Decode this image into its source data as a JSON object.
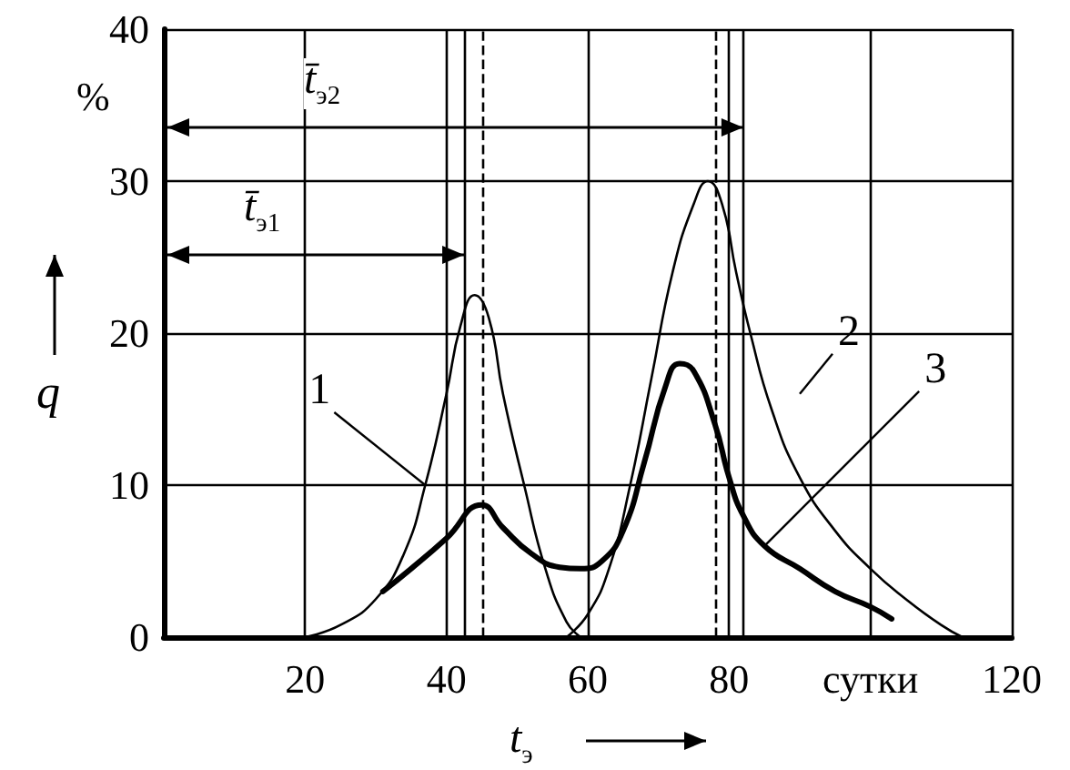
{
  "chart_data": {
    "type": "line",
    "xlabel": "t$_{э}$",
    "ylabel": "q",
    "xlim": [
      0,
      120
    ],
    "xticks": [
      {
        "value": 0,
        "label": null
      },
      20,
      40,
      60,
      80,
      {
        "value": 100,
        "label": "сутки"
      },
      120
    ],
    "ylim": [
      0,
      40
    ],
    "yticks": [
      0,
      10,
      20,
      30,
      40
    ],
    "grid": true,
    "marker": "none",
    "line_style": "solid",
    "series": [
      {
        "name": "1",
        "color": "#000000",
        "x": [
          20,
          25,
          30,
          34,
          37,
          40,
          42,
          44,
          46,
          48,
          51,
          54,
          57,
          59
        ],
        "values": [
          0,
          0.8,
          2.5,
          5.5,
          10,
          16,
          20.5,
          22.5,
          21,
          16,
          10,
          4.5,
          1,
          0
        ]
      },
      {
        "name": "2",
        "color": "#000000",
        "x": [
          57,
          60,
          63,
          66,
          69,
          72,
          75,
          77,
          79,
          81,
          83,
          86,
          90,
          95,
          100,
          105,
          110,
          113
        ],
        "values": [
          0,
          1.5,
          4.5,
          10,
          17,
          24,
          28.5,
          30,
          28.5,
          24,
          20,
          15,
          10.5,
          7,
          4.5,
          2.5,
          0.8,
          0
        ]
      },
      {
        "name": "3",
        "color": "#000000",
        "x": [
          31,
          35,
          40,
          45,
          48,
          52,
          56,
          59,
          62,
          65,
          68,
          71,
          73,
          75,
          78,
          80,
          82,
          85,
          90,
          95,
          100,
          103
        ],
        "values": [
          3,
          4.5,
          6.5,
          8.7,
          7.2,
          5.5,
          4.6,
          4.5,
          5,
          7,
          11.5,
          16.5,
          18,
          17.5,
          14,
          10.5,
          8,
          6,
          4.5,
          3,
          2,
          1.2
        ]
      }
    ],
    "ref_lines": [
      {
        "axis": "x",
        "value": 42.5,
        "line_style": "solid"
      },
      {
        "axis": "x",
        "value": 45,
        "line_style": "dashed"
      },
      {
        "axis": "x",
        "value": 78,
        "line_style": "dashed"
      },
      {
        "axis": "x",
        "value": 82,
        "line_style": "solid"
      }
    ],
    "annotations": [
      "%",
      "t̄$_{э1}$",
      "t̄$_{э2}$"
    ]
  }
}
